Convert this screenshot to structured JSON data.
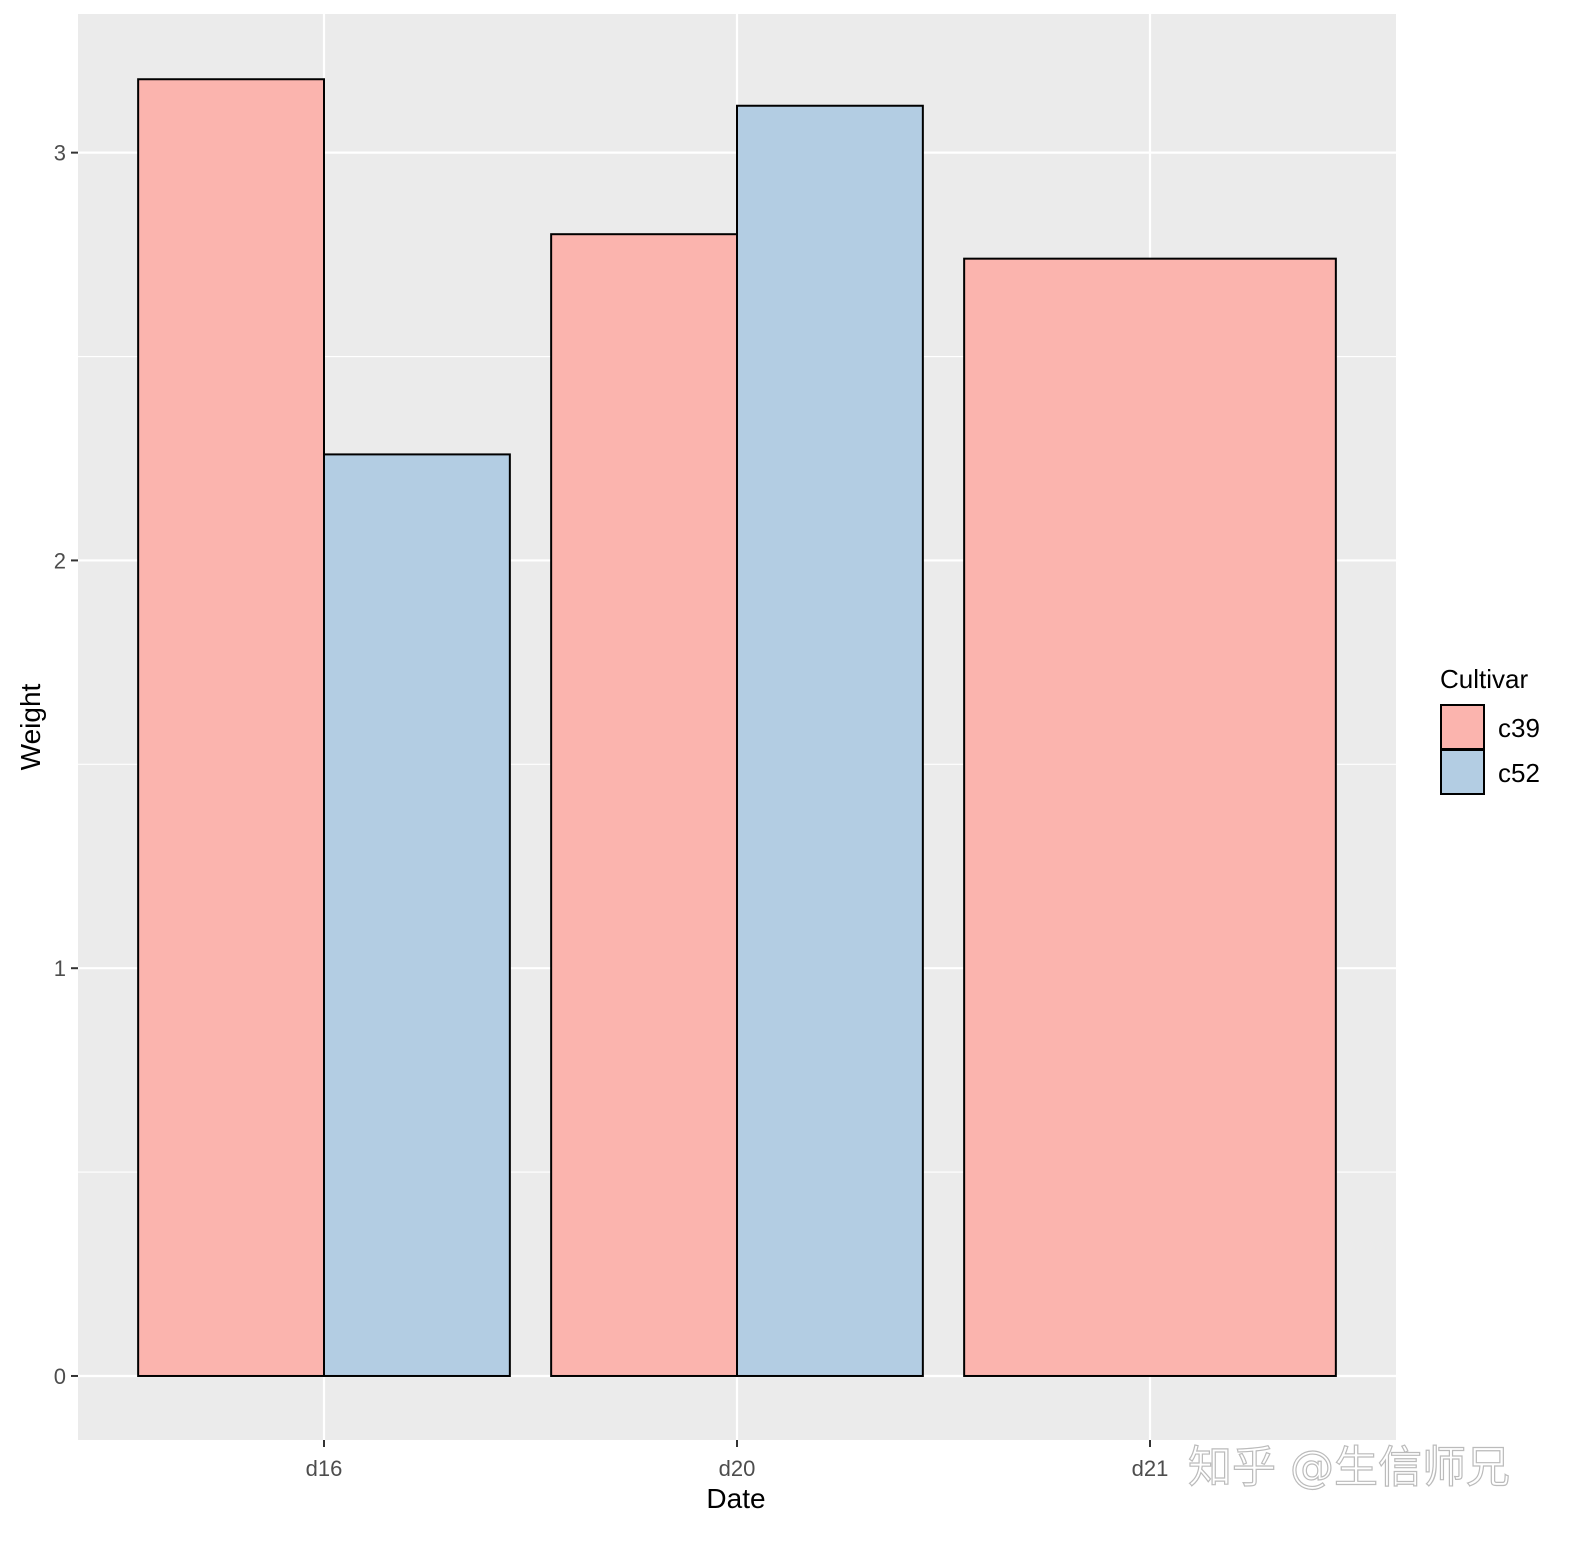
{
  "chart_data": {
    "type": "bar",
    "position": "dodge",
    "categories": [
      "d16",
      "d20",
      "d21"
    ],
    "series": [
      {
        "name": "c39",
        "values": [
          3.18,
          2.8,
          2.74
        ],
        "color": "#FBB4AE"
      },
      {
        "name": "c52",
        "values": [
          2.26,
          3.115,
          null
        ],
        "color": "#B3CDE3"
      }
    ],
    "xlabel": "Date",
    "ylabel": "Weight",
    "ylim": [
      -0.157,
      3.34
    ],
    "yticks": [
      0,
      1,
      2,
      3
    ],
    "grid": true,
    "panel_background": "#EBEBEB",
    "bar_outline": "#000000",
    "legend": {
      "title": "Cultivar",
      "placement": "right",
      "entries": [
        "c39",
        "c52"
      ]
    }
  },
  "watermark": "知乎 @生信师兄"
}
